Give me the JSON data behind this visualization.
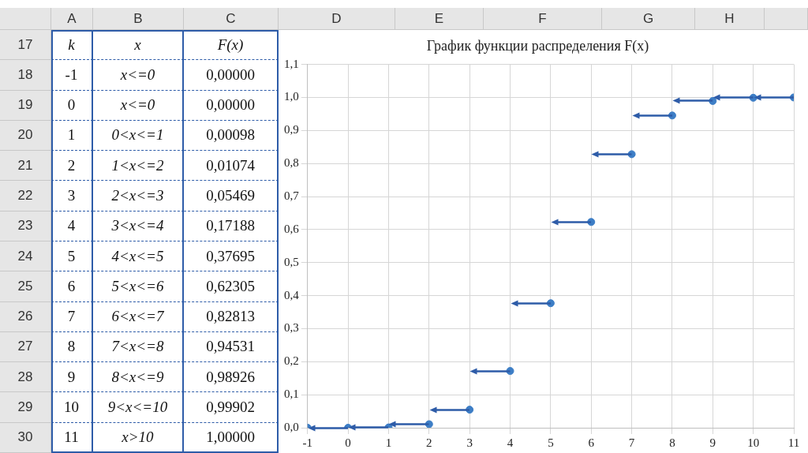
{
  "chart_data": {
    "type": "scatter",
    "title": "График функции распределения F(x)",
    "series": [
      {
        "color": "#3d7ec6",
        "x": [
          -1,
          0,
          1,
          2,
          3,
          4,
          5,
          6,
          7,
          8,
          9,
          10,
          11
        ],
        "values": [
          0,
          0,
          0.00098,
          0.01074,
          0.05469,
          0.17188,
          0.37695,
          0.62305,
          0.82813,
          0.94531,
          0.98926,
          0.99902,
          1
        ]
      }
    ],
    "marker": "circle",
    "grid": true,
    "legend": false,
    "xlim": [
      -1,
      11
    ],
    "xticks": [
      -1,
      0,
      1,
      2,
      3,
      4,
      5,
      6,
      7,
      8,
      9,
      10,
      11
    ],
    "ylim": [
      0,
      1.1
    ],
    "yticks": [
      {
        "value": 0,
        "label": "0,0"
      },
      {
        "value": 0.1,
        "label": "0,1"
      },
      {
        "value": 0.2,
        "label": "0,2"
      },
      {
        "value": 0.3,
        "label": "0,3"
      },
      {
        "value": 0.4,
        "label": "0,4"
      },
      {
        "value": 0.5,
        "label": "0,5"
      },
      {
        "value": 0.6,
        "label": "0,6"
      },
      {
        "value": 0.7,
        "label": "0,7"
      },
      {
        "value": 0.8,
        "label": "0,8"
      },
      {
        "value": 0.9,
        "label": "0,9"
      },
      {
        "value": 1,
        "label": "1,0"
      },
      {
        "value": 1.1,
        "label": "1,1"
      }
    ],
    "annotations": [
      "A",
      "B",
      "C",
      "D",
      "E",
      "F",
      "G",
      "H",
      "17",
      "18",
      "19",
      "20",
      "21",
      "22",
      "23",
      "24",
      "25",
      "26",
      "27",
      "28",
      "29",
      "30",
      "k",
      "x",
      "F(x)",
      "-1",
      "x<=0",
      "0,00000",
      "0",
      "x<=0",
      "0,00000",
      "1",
      "0<x<=1",
      "0,00098",
      "2",
      "1<x<=2",
      "0,01074",
      "3",
      "2<x<=3",
      "0,05469",
      "4",
      "3<x<=4",
      "0,17188",
      "5",
      "4<x<=5",
      "0,37695",
      "6",
      "5<x<=6",
      "0,62305",
      "7",
      "6<x<=7",
      "0,82813",
      "8",
      "7<x<=8",
      "0,94531",
      "9",
      "8<x<=9",
      "0,98926",
      "10",
      "9<x<=10",
      "0,99902",
      "11",
      "x>10",
      "1,00000"
    ]
  }
}
